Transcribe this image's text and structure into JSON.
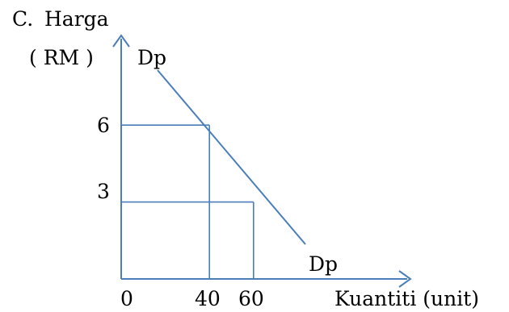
{
  "label_prefix": "C.",
  "chart_data": {
    "type": "line",
    "ylabel": "Harga",
    "yunit": "( RM )",
    "xlabel": "Kuantiti (unit)",
    "origin_label": "0",
    "series": [
      {
        "name": "Dp",
        "x": [
          40,
          60
        ],
        "y": [
          6,
          3
        ]
      }
    ],
    "curve_label_top": "Dp",
    "curve_label_bottom": "Dp",
    "guide_points": [
      {
        "x": 40,
        "y": 6
      },
      {
        "x": 60,
        "y": 3
      }
    ],
    "x_ticks": [
      "40",
      "60"
    ],
    "y_ticks": [
      "6",
      "3"
    ],
    "grid": false
  },
  "colors": {
    "line": "#4a7ebb",
    "text": "#000000"
  }
}
